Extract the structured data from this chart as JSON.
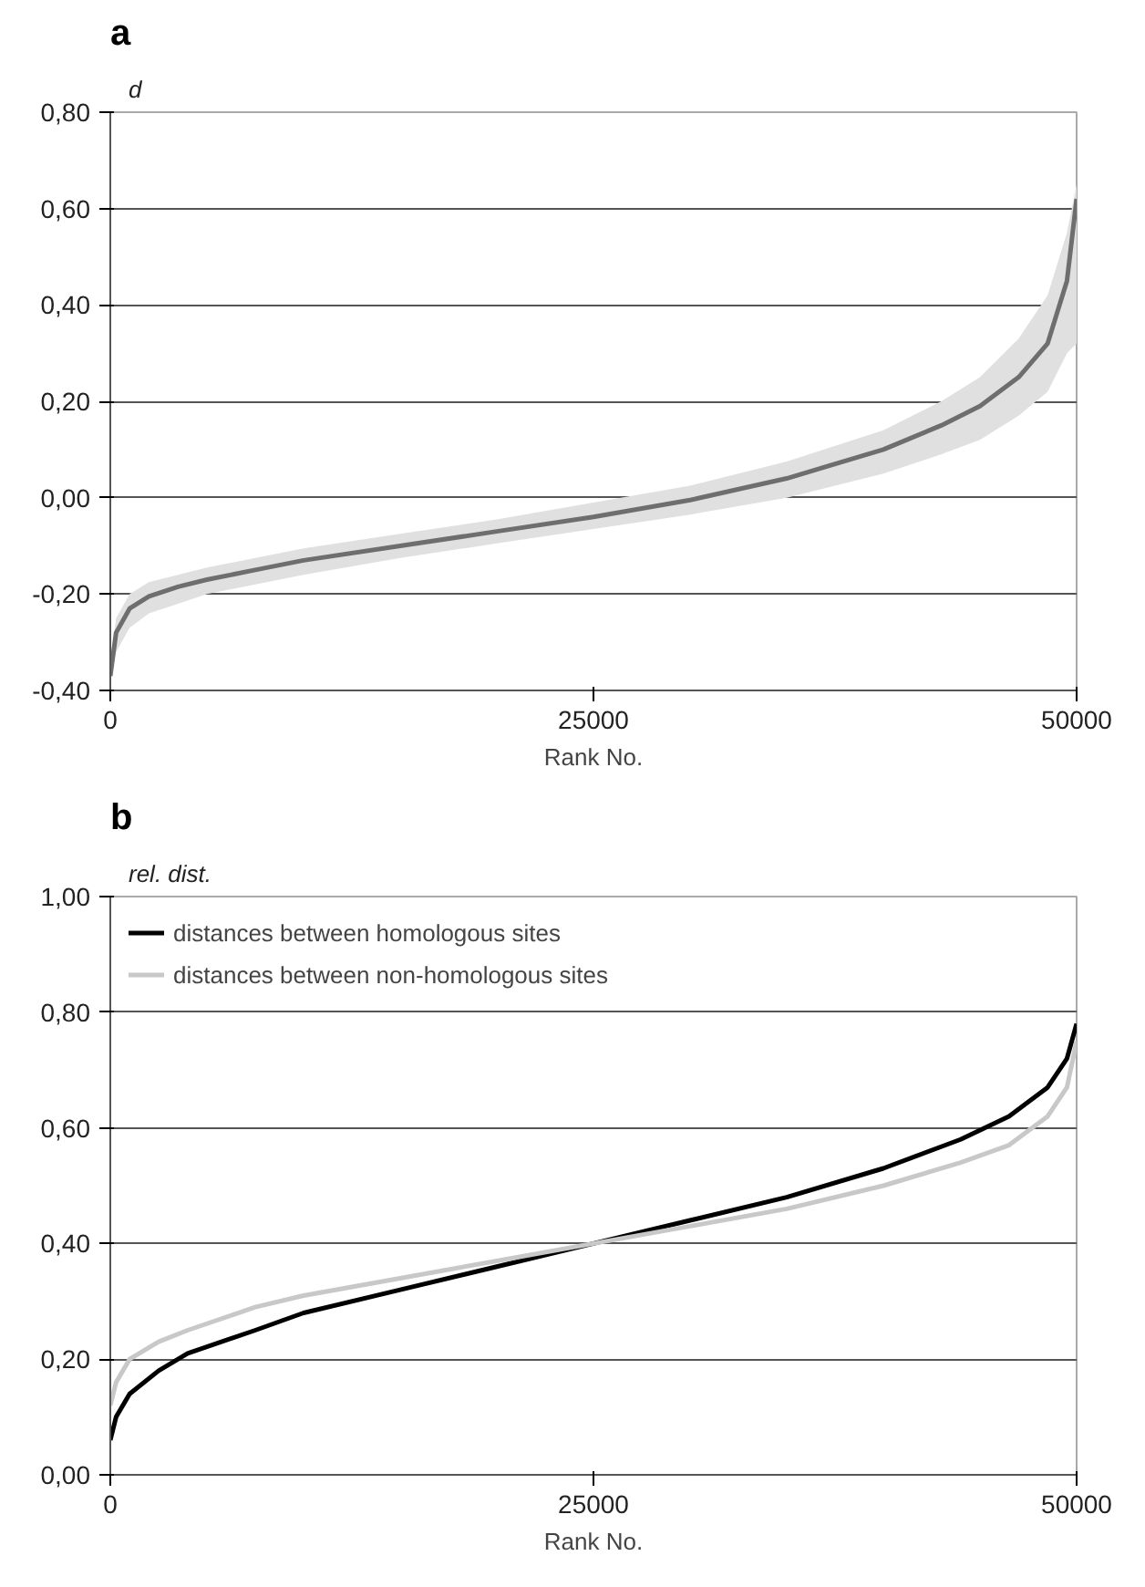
{
  "chart_data": [
    {
      "type": "line",
      "title": "a",
      "ylabel": "d",
      "xlabel": "Rank No.",
      "x": [
        0,
        300,
        1000,
        2000,
        3500,
        5000,
        7500,
        10000,
        15000,
        20000,
        25000,
        30000,
        35000,
        40000,
        43000,
        45000,
        47000,
        48500,
        49500,
        50000
      ],
      "series": [
        {
          "color": "#6e6e6e",
          "values": [
            -0.37,
            -0.28,
            -0.23,
            -0.205,
            -0.185,
            -0.17,
            -0.15,
            -0.13,
            -0.1,
            -0.07,
            -0.04,
            -0.005,
            0.04,
            0.1,
            0.15,
            0.19,
            0.25,
            0.32,
            0.45,
            0.62
          ],
          "lower": [
            -0.37,
            -0.32,
            -0.27,
            -0.24,
            -0.22,
            -0.2,
            -0.18,
            -0.16,
            -0.125,
            -0.095,
            -0.065,
            -0.035,
            0.0,
            0.05,
            0.09,
            0.12,
            0.17,
            0.22,
            0.3,
            0.32
          ],
          "upper": [
            -0.34,
            -0.25,
            -0.2,
            -0.175,
            -0.16,
            -0.145,
            -0.125,
            -0.105,
            -0.075,
            -0.045,
            -0.01,
            0.025,
            0.075,
            0.14,
            0.2,
            0.25,
            0.33,
            0.42,
            0.55,
            0.65
          ]
        }
      ],
      "xlim": [
        0,
        50000
      ],
      "xticks": [
        0,
        25000,
        50000
      ],
      "ylim": [
        -0.4,
        0.8
      ],
      "yticks": [
        {
          "value": -0.4,
          "label": "-0,40"
        },
        {
          "value": -0.2,
          "label": "-0,20"
        },
        {
          "value": 0,
          "label": "0,00"
        },
        {
          "value": 0.2,
          "label": "0,20"
        },
        {
          "value": 0.4,
          "label": "0,40"
        },
        {
          "value": 0.6,
          "label": "0,60"
        },
        {
          "value": 0.8,
          "label": "0,80"
        }
      ],
      "grid": "y",
      "legend": false,
      "line_style": "solid"
    },
    {
      "type": "line",
      "title": "b",
      "ylabel": "rel. dist.",
      "xlabel": "Rank No.",
      "x": [
        0,
        300,
        1000,
        2500,
        4000,
        7500,
        10000,
        15000,
        20000,
        25000,
        30000,
        35000,
        40000,
        44000,
        46500,
        48500,
        49500,
        50000
      ],
      "series": [
        {
          "name": "distances between homologous sites",
          "color": "#000000",
          "values": [
            0.06,
            0.1,
            0.14,
            0.18,
            0.21,
            0.25,
            0.28,
            0.32,
            0.36,
            0.4,
            0.44,
            0.48,
            0.53,
            0.58,
            0.62,
            0.67,
            0.72,
            0.78
          ]
        },
        {
          "name": "distances between non-homologous sites",
          "color": "#c8c8c8",
          "values": [
            0.12,
            0.16,
            0.2,
            0.23,
            0.25,
            0.29,
            0.31,
            0.34,
            0.37,
            0.4,
            0.43,
            0.46,
            0.5,
            0.54,
            0.57,
            0.62,
            0.67,
            0.75
          ]
        }
      ],
      "xlim": [
        0,
        50000
      ],
      "xticks": [
        0,
        25000,
        50000
      ],
      "ylim": [
        0,
        1
      ],
      "yticks": [
        {
          "value": 0,
          "label": "0,00"
        },
        {
          "value": 0.2,
          "label": "0,20"
        },
        {
          "value": 0.4,
          "label": "0,40"
        },
        {
          "value": 0.6,
          "label": "0,60"
        },
        {
          "value": 0.8,
          "label": "0,80"
        },
        {
          "value": 1,
          "label": "1,00"
        }
      ],
      "grid": "y",
      "legend": "top left",
      "line_style": "solid"
    }
  ]
}
